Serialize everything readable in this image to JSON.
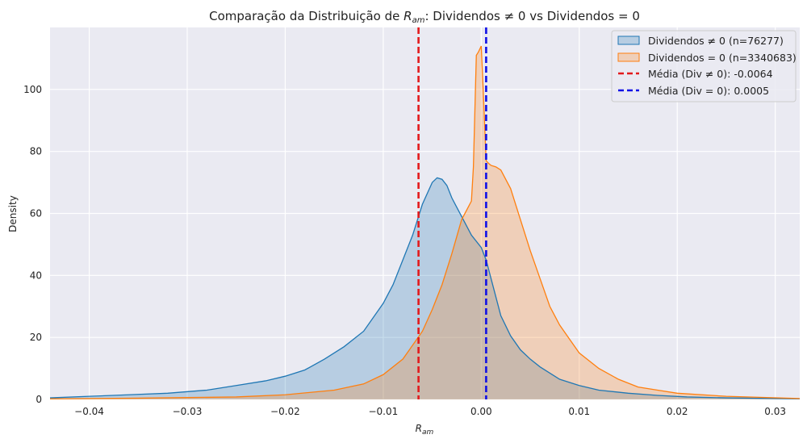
{
  "chart_data": {
    "type": "area",
    "title": "Comparação da Distribuição de R_am: Dividendos ≠ 0 vs Dividendos = 0",
    "title_parts": {
      "prefix": "Comparação da Distribuição de ",
      "var_main": "R",
      "var_sub": "am",
      "suffix": ": Dividendos ≠ 0 vs Dividendos = 0"
    },
    "xlabel": "R_am",
    "xlabel_parts": {
      "main": "R",
      "sub": "am"
    },
    "ylabel": "Density",
    "xlim": [
      -0.044,
      0.0325
    ],
    "ylim": [
      0,
      120
    ],
    "x_ticks": [
      -0.04,
      -0.03,
      -0.02,
      -0.01,
      0.0,
      0.01,
      0.02,
      0.03
    ],
    "x_tick_labels": [
      "−0.04",
      "−0.03",
      "−0.02",
      "−0.01",
      "0.00",
      "0.01",
      "0.02",
      "0.03"
    ],
    "y_ticks": [
      0,
      20,
      40,
      60,
      80,
      100
    ],
    "y_tick_labels": [
      "0",
      "20",
      "40",
      "60",
      "80",
      "100"
    ],
    "grid": true,
    "legend_position": "top-right",
    "series": [
      {
        "name": "Dividendos ≠ 0 (n=76277)",
        "kind": "kde",
        "color": "#1f77b4",
        "fill": "#1f77b4",
        "x": [
          -0.044,
          -0.04,
          -0.036,
          -0.032,
          -0.028,
          -0.025,
          -0.022,
          -0.02,
          -0.018,
          -0.016,
          -0.014,
          -0.012,
          -0.01,
          -0.009,
          -0.008,
          -0.007,
          -0.006,
          -0.005,
          -0.0045,
          -0.004,
          -0.0035,
          -0.003,
          -0.002,
          -0.001,
          0.0,
          0.0005,
          0.001,
          0.002,
          0.003,
          0.004,
          0.005,
          0.006,
          0.008,
          0.01,
          0.012,
          0.015,
          0.018,
          0.021,
          0.025,
          0.0325
        ],
        "y": [
          0.5,
          1,
          1.5,
          2,
          3,
          4.5,
          6,
          7.5,
          9.5,
          13,
          17,
          22,
          31,
          37,
          45,
          53,
          63,
          70,
          71.5,
          71,
          69,
          65,
          59,
          53,
          49,
          45,
          39,
          27,
          20.5,
          16,
          13,
          10.5,
          6.5,
          4.5,
          3,
          2,
          1.3,
          0.8,
          0.5,
          0.2
        ]
      },
      {
        "name": "Dividendos = 0 (n=3340683)",
        "kind": "kde",
        "color": "#ff7f0e",
        "fill": "#ff7f0e",
        "x": [
          -0.044,
          -0.035,
          -0.03,
          -0.025,
          -0.02,
          -0.015,
          -0.012,
          -0.01,
          -0.008,
          -0.006,
          -0.005,
          -0.004,
          -0.003,
          -0.002,
          -0.0015,
          -0.001,
          -0.0008,
          -0.0005,
          -0.0003,
          0.0,
          0.0002,
          0.0005,
          0.0008,
          0.001,
          0.0015,
          0.002,
          0.003,
          0.004,
          0.005,
          0.006,
          0.007,
          0.008,
          0.009,
          0.01,
          0.012,
          0.014,
          0.016,
          0.018,
          0.02,
          0.025,
          0.0325
        ],
        "y": [
          0.2,
          0.4,
          0.6,
          0.8,
          1.5,
          3,
          5,
          8,
          13,
          22,
          29,
          37,
          47,
          58,
          61,
          64,
          75,
          111,
          112,
          114,
          100,
          77,
          76,
          75.5,
          75,
          74,
          68,
          58,
          48,
          39,
          30,
          24,
          19.5,
          15,
          10,
          6.5,
          4,
          3,
          2,
          1,
          0.3
        ]
      }
    ],
    "reference_lines": [
      {
        "name": "Média (Div ≠ 0): -0.0064",
        "x": -0.0064,
        "color": "#e31a1c",
        "style": "dashed"
      },
      {
        "name": "Média (Div = 0): 0.0005",
        "x": 0.0005,
        "color": "#1010e6",
        "style": "dashed"
      }
    ]
  }
}
